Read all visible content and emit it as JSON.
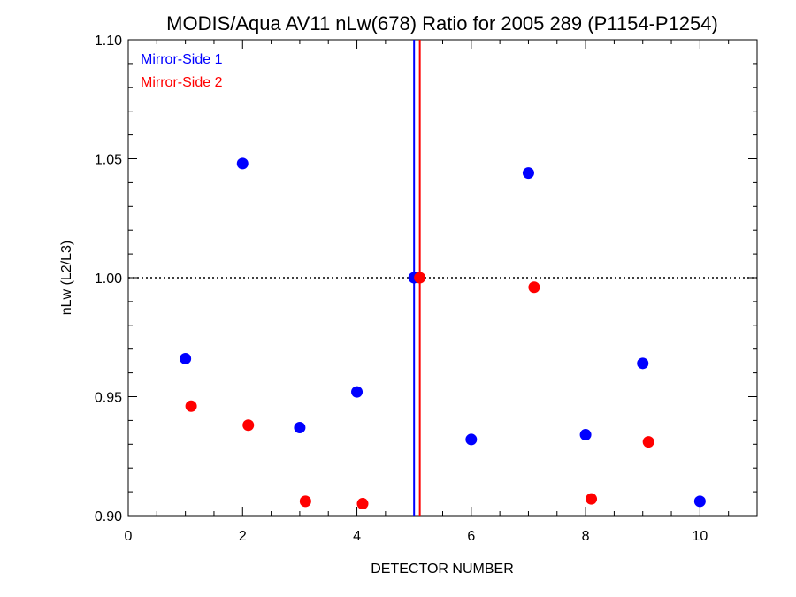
{
  "chart_data": {
    "type": "scatter",
    "title": "MODIS/Aqua AV11 nLw(678) Ratio for 2005 289 (P1154-P1254)",
    "xlabel": "DETECTOR NUMBER",
    "ylabel": "nLw (L2/L3)",
    "xlim": [
      0,
      11
    ],
    "ylim": [
      0.9,
      1.1
    ],
    "x_ticks": [
      0,
      2,
      4,
      6,
      8,
      10
    ],
    "x_tick_labels": [
      "0",
      "2",
      "4",
      "6",
      "8",
      "10"
    ],
    "y_ticks": [
      0.9,
      0.95,
      1.0,
      1.05,
      1.1
    ],
    "y_tick_labels": [
      "0.90",
      "0.95",
      "1.00",
      "1.05",
      "1.10"
    ],
    "reference_line": {
      "y": 1.0,
      "style": "dotted"
    },
    "legend_position": "top-left",
    "series": [
      {
        "name": "Mirror-Side 1",
        "color": "#0000ff",
        "vline_x": 5.0,
        "x": [
          1,
          2,
          3,
          4,
          5,
          6,
          7,
          8,
          9,
          10
        ],
        "y": [
          0.966,
          1.048,
          0.937,
          0.952,
          1.0,
          0.932,
          1.044,
          0.934,
          0.964,
          0.906
        ]
      },
      {
        "name": "Mirror-Side 2",
        "color": "#ff0000",
        "vline_x": 5.1,
        "x": [
          1.1,
          2.1,
          3.1,
          4.1,
          5.1,
          7.1,
          8.1,
          9.1
        ],
        "y": [
          0.946,
          0.938,
          0.906,
          0.905,
          1.0,
          0.996,
          0.907,
          0.931
        ]
      }
    ]
  }
}
